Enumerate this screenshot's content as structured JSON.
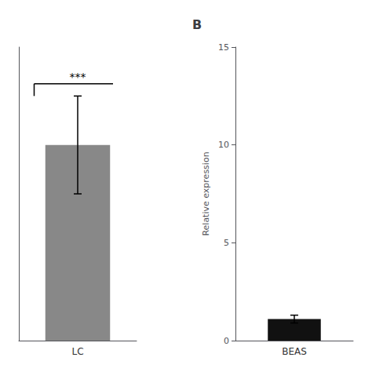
{
  "chart_data": [
    {
      "type": "bar",
      "categories": [
        "LC"
      ],
      "values": [
        8.0
      ],
      "errors": [
        2.0
      ],
      "color": "#888888",
      "ylim": [
        0,
        12
      ],
      "tick_labels": "x",
      "grid": false,
      "annotations": [
        {
          "text": "***",
          "x": "LC",
          "y": 10.5
        }
      ]
    },
    {
      "type": "bar",
      "title": "B",
      "categories": [
        "BEAS"
      ],
      "values": [
        1.1
      ],
      "errors": [
        0.2
      ],
      "color": "#111111",
      "ylim": [
        0,
        15
      ],
      "yticks": [
        0,
        5,
        10,
        15
      ],
      "ylabel": "Relative expression",
      "grid": false
    }
  ]
}
